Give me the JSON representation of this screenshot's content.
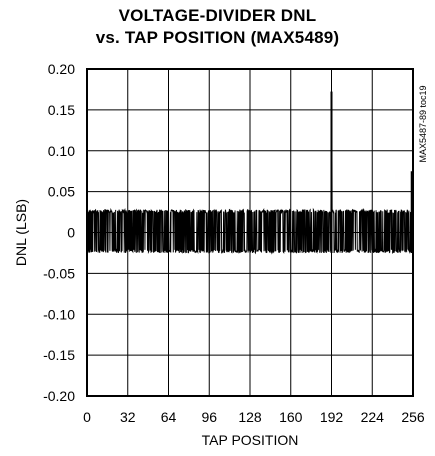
{
  "chart_data": {
    "type": "line",
    "title_line1": "VOLTAGE-DIVIDER DNL",
    "title_line2": "vs. TAP POSITION (MAX5489)",
    "xlabel": "TAP POSITION",
    "ylabel": "DNL (LSB)",
    "side_note": "MAX5487-89 toc19",
    "xlim": [
      0,
      256
    ],
    "ylim": [
      -0.2,
      0.2
    ],
    "x_ticks": [
      "0",
      "32",
      "64",
      "96",
      "128",
      "160",
      "192",
      "224",
      "256"
    ],
    "y_ticks": [
      "0.20",
      "0.15",
      "0.10",
      "0.05",
      "0",
      "-0.05",
      "-0.10",
      "-0.15",
      "-0.20"
    ],
    "grid": true,
    "series": [
      {
        "noise_band": [
          -0.025,
          0.028
        ],
        "spikes": [
          {
            "x": 192,
            "y": 0.172
          },
          {
            "x": 255,
            "y": 0.075
          }
        ]
      }
    ]
  }
}
